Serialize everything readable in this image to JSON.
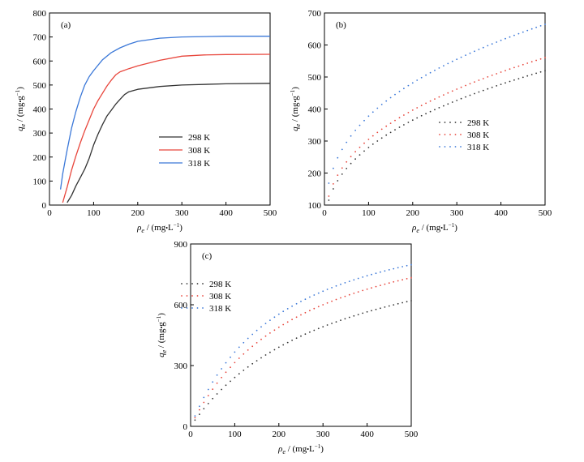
{
  "colors": {
    "k298": "#333333",
    "k308": "#e8463c",
    "k318": "#3b78d8"
  },
  "labels": {
    "q": "q",
    "q_sub": "e",
    "q_unit_open": " / (mg",
    "q_unit_dot": "•",
    "q_unit_g": "g",
    "q_unit_exp": "−1",
    "q_unit_close": ")",
    "rho": "ρ",
    "rho_sub": "e",
    "rho_unit_open": " / (mg",
    "rho_unit_dot": "•",
    "rho_unit_L": "L",
    "rho_unit_exp": "−1",
    "rho_unit_close": ")"
  },
  "chart_data": [
    {
      "id": "a",
      "type": "line",
      "panel_label": "(a)",
      "xlim": [
        0,
        500
      ],
      "ylim": [
        0,
        800
      ],
      "xticks": [
        0,
        100,
        200,
        300,
        400,
        500
      ],
      "yticks": [
        0,
        100,
        200,
        300,
        400,
        500,
        600,
        700,
        800
      ],
      "xlabel": "ρe / (mg•L−1)",
      "ylabel": "qe / (mg•g−1)",
      "legend_position": "center-right",
      "series": [
        {
          "name": "298 K",
          "color": "#333333",
          "x": [
            40,
            50,
            60,
            70,
            80,
            90,
            100,
            110,
            120,
            130,
            140,
            150,
            160,
            170,
            180,
            200,
            250,
            300,
            400,
            500
          ],
          "y": [
            10,
            40,
            80,
            115,
            150,
            195,
            250,
            295,
            335,
            370,
            395,
            420,
            440,
            460,
            472,
            482,
            494,
            500,
            505,
            507
          ]
        },
        {
          "name": "308 K",
          "color": "#e8463c",
          "x": [
            30,
            40,
            50,
            60,
            70,
            80,
            90,
            100,
            110,
            120,
            130,
            140,
            150,
            160,
            180,
            200,
            250,
            300,
            350,
            400,
            500
          ],
          "y": [
            10,
            75,
            145,
            205,
            260,
            310,
            355,
            400,
            435,
            465,
            495,
            520,
            542,
            555,
            568,
            580,
            603,
            620,
            625,
            627,
            628
          ]
        },
        {
          "name": "318 K",
          "color": "#3b78d8",
          "x": [
            25,
            30,
            40,
            50,
            60,
            70,
            80,
            90,
            100,
            120,
            140,
            160,
            180,
            200,
            250,
            300,
            400,
            500
          ],
          "y": [
            65,
            130,
            230,
            320,
            390,
            450,
            500,
            535,
            560,
            605,
            635,
            655,
            670,
            682,
            695,
            700,
            703,
            703
          ]
        }
      ]
    },
    {
      "id": "b",
      "type": "scatter",
      "panel_label": "(b)",
      "xlim": [
        0,
        500
      ],
      "ylim": [
        100,
        700
      ],
      "xticks": [
        0,
        100,
        200,
        300,
        400,
        500
      ],
      "yticks": [
        100,
        200,
        300,
        400,
        500,
        600,
        700
      ],
      "xlabel": "ρe / (mg•L−1)",
      "ylabel": "qe / (mg•g−1)",
      "legend_position": "center-right",
      "series": [
        {
          "name": "298 K",
          "color": "#333333",
          "model": {
            "form": "power",
            "k": 47.5,
            "n": 0.385
          },
          "x_range": [
            10,
            500
          ]
        },
        {
          "name": "308 K",
          "color": "#e8463c",
          "model": {
            "form": "power",
            "k": 53.5,
            "n": 0.378
          },
          "x_range": [
            10,
            500
          ]
        },
        {
          "name": "318 K",
          "color": "#3b78d8",
          "model": {
            "form": "power",
            "k": 75.0,
            "n": 0.351
          },
          "x_range": [
            10,
            500
          ]
        }
      ]
    },
    {
      "id": "c",
      "type": "scatter",
      "panel_label": "(c)",
      "xlim": [
        0,
        500
      ],
      "ylim": [
        0,
        900
      ],
      "xticks": [
        0,
        100,
        200,
        300,
        400,
        500
      ],
      "yticks": [
        0,
        300,
        600,
        900
      ],
      "xlabel": "ρe / (mg•L−1)",
      "ylabel": "qe / (mg•g−1)",
      "legend_position": "top-left",
      "series": [
        {
          "name": "298 K",
          "color": "#333333",
          "model": {
            "form": "langmuir",
            "qm": 1020,
            "kl": 0.0031
          },
          "x_range": [
            10,
            500
          ]
        },
        {
          "name": "308 K",
          "color": "#e8463c",
          "model": {
            "form": "langmuir",
            "qm": 1100,
            "kl": 0.004
          },
          "x_range": [
            10,
            500
          ]
        },
        {
          "name": "318 K",
          "color": "#3b78d8",
          "model": {
            "form": "langmuir",
            "qm": 1130,
            "kl": 0.0048
          },
          "x_range": [
            10,
            500
          ]
        }
      ]
    }
  ]
}
